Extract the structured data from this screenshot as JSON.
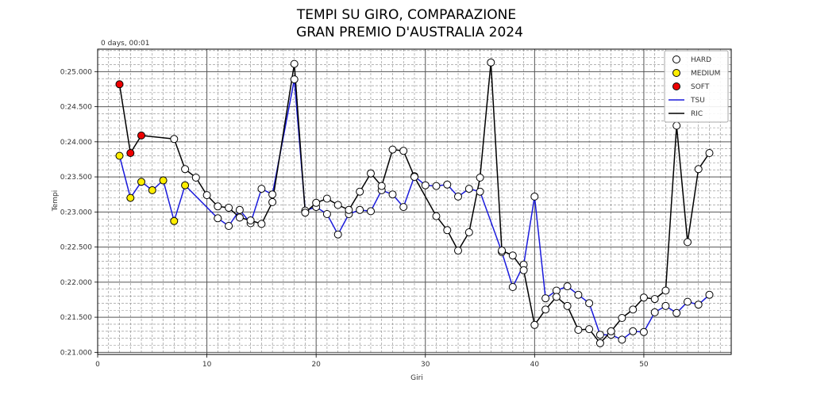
{
  "chart_data": {
    "type": "line",
    "title_line1": "TEMPI SU GIRO, COMPARAZIONE",
    "title_line2": "GRAN PREMIO D'AUSTRALIA 2024",
    "offset_label": "0 days, 00:01",
    "xlabel": "Giri",
    "ylabel": "Tempi",
    "xlim": [
      0,
      58
    ],
    "ylim": [
      20.97,
      25.32
    ],
    "xticks": [
      0,
      10,
      20,
      30,
      40,
      50
    ],
    "xtick_labels": [
      "0",
      "10",
      "20",
      "30",
      "40",
      "50"
    ],
    "yticks": [
      21.0,
      21.5,
      22.0,
      22.5,
      23.0,
      23.5,
      24.0,
      24.5,
      25.0
    ],
    "ytick_labels": [
      "0:21.000",
      "0:21.500",
      "0:22.000",
      "0:22.500",
      "0:23.000",
      "0:23.500",
      "0:24.000",
      "0:24.500",
      "0:25.000"
    ],
    "grid": true,
    "legend_position": "top-right",
    "legend": [
      {
        "label": "HARD",
        "kind": "marker",
        "color": "#ffffff"
      },
      {
        "label": "MEDIUM",
        "kind": "marker",
        "color": "#ffee00"
      },
      {
        "label": "SOFT",
        "kind": "marker",
        "color": "#ee0000"
      },
      {
        "label": "TSU",
        "kind": "line",
        "color": "#1a1adb"
      },
      {
        "label": "RIC",
        "kind": "line",
        "color": "#000000"
      }
    ],
    "compound_colors": {
      "HARD": "#ffffff",
      "MEDIUM": "#ffee00",
      "SOFT": "#ee0000"
    },
    "series": [
      {
        "name": "TSU",
        "color": "#1a1adb",
        "points": [
          [
            2,
            23.8,
            "MEDIUM"
          ],
          [
            3,
            23.2,
            "MEDIUM"
          ],
          [
            4,
            23.43,
            "MEDIUM"
          ],
          [
            5,
            23.31,
            "MEDIUM"
          ],
          [
            6,
            23.45,
            "MEDIUM"
          ],
          [
            7,
            22.87,
            "MEDIUM"
          ],
          [
            8,
            23.38,
            "MEDIUM"
          ],
          [
            11,
            22.91,
            "HARD"
          ],
          [
            12,
            22.8,
            "HARD"
          ],
          [
            13,
            23.03,
            "HARD"
          ],
          [
            14,
            22.84,
            "HARD"
          ],
          [
            15,
            23.33,
            "HARD"
          ],
          [
            16,
            23.25,
            "HARD"
          ],
          [
            18,
            24.89,
            "HARD"
          ],
          [
            19,
            23.02,
            "HARD"
          ],
          [
            20,
            23.07,
            "HARD"
          ],
          [
            21,
            22.97,
            "HARD"
          ],
          [
            22,
            22.68,
            "HARD"
          ],
          [
            23,
            22.97,
            "HARD"
          ],
          [
            24,
            23.03,
            "HARD"
          ],
          [
            25,
            23.01,
            "HARD"
          ],
          [
            26,
            23.31,
            "HARD"
          ],
          [
            27,
            23.25,
            "HARD"
          ],
          [
            28,
            23.07,
            "HARD"
          ],
          [
            29,
            23.51,
            "HARD"
          ],
          [
            30,
            23.38,
            "HARD"
          ],
          [
            31,
            23.37,
            "HARD"
          ],
          [
            32,
            23.39,
            "HARD"
          ],
          [
            33,
            23.22,
            "HARD"
          ],
          [
            34,
            23.33,
            "HARD"
          ],
          [
            35,
            23.29,
            "HARD"
          ],
          [
            37,
            22.43,
            "HARD"
          ],
          [
            38,
            21.93,
            "HARD"
          ],
          [
            39,
            22.25,
            "HARD"
          ],
          [
            40,
            23.22,
            "HARD"
          ],
          [
            41,
            21.77,
            "HARD"
          ],
          [
            42,
            21.88,
            "HARD"
          ],
          [
            43,
            21.94,
            "HARD"
          ],
          [
            44,
            21.82,
            "HARD"
          ],
          [
            45,
            21.7,
            "HARD"
          ],
          [
            46,
            21.25,
            "HARD"
          ],
          [
            47,
            21.25,
            "HARD"
          ],
          [
            48,
            21.18,
            "HARD"
          ],
          [
            49,
            21.3,
            "HARD"
          ],
          [
            50,
            21.29,
            "HARD"
          ],
          [
            51,
            21.57,
            "HARD"
          ],
          [
            52,
            21.66,
            "HARD"
          ],
          [
            53,
            21.56,
            "HARD"
          ],
          [
            54,
            21.72,
            "HARD"
          ],
          [
            55,
            21.68,
            "HARD"
          ],
          [
            56,
            21.82,
            "HARD"
          ]
        ]
      },
      {
        "name": "RIC",
        "color": "#000000",
        "points": [
          [
            2,
            24.82,
            "SOFT"
          ],
          [
            3,
            23.84,
            "SOFT"
          ],
          [
            4,
            24.09,
            "SOFT"
          ],
          [
            7,
            24.04,
            "HARD"
          ],
          [
            8,
            23.61,
            "HARD"
          ],
          [
            9,
            23.49,
            "HARD"
          ],
          [
            10,
            23.24,
            "HARD"
          ],
          [
            11,
            23.08,
            "HARD"
          ],
          [
            12,
            23.06,
            "HARD"
          ],
          [
            13,
            22.92,
            "HARD"
          ],
          [
            14,
            22.88,
            "HARD"
          ],
          [
            15,
            22.83,
            "HARD"
          ],
          [
            16,
            23.14,
            "HARD"
          ],
          [
            18,
            25.11,
            "HARD"
          ],
          [
            19,
            22.99,
            "HARD"
          ],
          [
            20,
            23.13,
            "HARD"
          ],
          [
            21,
            23.19,
            "HARD"
          ],
          [
            22,
            23.1,
            "HARD"
          ],
          [
            23,
            23.03,
            "HARD"
          ],
          [
            24,
            23.29,
            "HARD"
          ],
          [
            25,
            23.55,
            "HARD"
          ],
          [
            26,
            23.37,
            "HARD"
          ],
          [
            27,
            23.89,
            "HARD"
          ],
          [
            28,
            23.87,
            "HARD"
          ],
          [
            29,
            23.5,
            "HARD"
          ],
          [
            31,
            22.94,
            "HARD"
          ],
          [
            32,
            22.74,
            "HARD"
          ],
          [
            33,
            22.45,
            "HARD"
          ],
          [
            34,
            22.71,
            "HARD"
          ],
          [
            35,
            23.49,
            "HARD"
          ],
          [
            36,
            25.13,
            "HARD"
          ],
          [
            37,
            22.45,
            "HARD"
          ],
          [
            38,
            22.38,
            "HARD"
          ],
          [
            39,
            22.17,
            "HARD"
          ],
          [
            40,
            21.39,
            "HARD"
          ],
          [
            41,
            21.61,
            "HARD"
          ],
          [
            42,
            21.79,
            "HARD"
          ],
          [
            43,
            21.66,
            "HARD"
          ],
          [
            44,
            21.32,
            "HARD"
          ],
          [
            45,
            21.33,
            "HARD"
          ],
          [
            46,
            21.13,
            "HARD"
          ],
          [
            47,
            21.3,
            "HARD"
          ],
          [
            48,
            21.49,
            "HARD"
          ],
          [
            49,
            21.61,
            "HARD"
          ],
          [
            50,
            21.78,
            "HARD"
          ],
          [
            51,
            21.76,
            "HARD"
          ],
          [
            52,
            21.88,
            "HARD"
          ],
          [
            53,
            24.23,
            "HARD"
          ],
          [
            54,
            22.57,
            "HARD"
          ],
          [
            55,
            23.61,
            "HARD"
          ],
          [
            56,
            23.84,
            "HARD"
          ]
        ]
      }
    ]
  }
}
